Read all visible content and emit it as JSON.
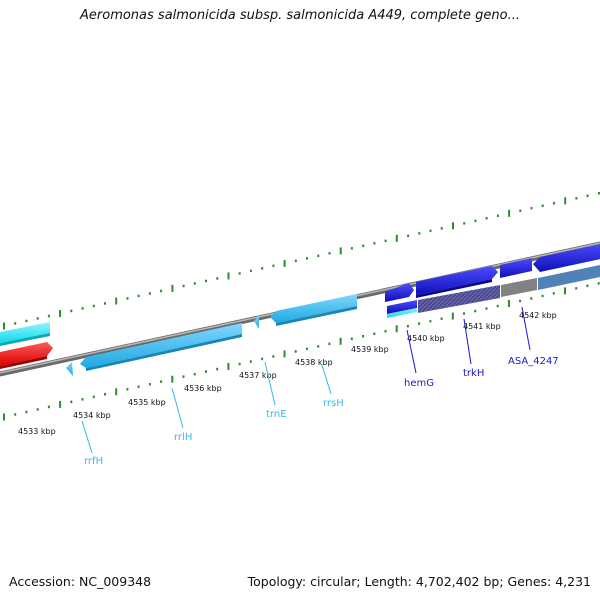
{
  "title": "Aeromonas salmonicida subsp. salmonicida A449, complete geno...",
  "footer": {
    "accession": "Accession: NC_009348",
    "summary": "Topology: circular; Length: 4,702,402 bp; Genes: 4,231"
  },
  "colors": {
    "background": "#ffffff",
    "backbone": "#8a8a8a",
    "tick": "#2e8b2e",
    "rna_gene": "#33bbee",
    "rna_label": "#33bbee",
    "coding_gene": "#1a1adf",
    "coding_label": "#1a1acc",
    "pseudo_or_other": "#ff1111",
    "highlight": "#22e6ee",
    "hatched_gene": "#4a4a9a",
    "gray_gene": "#808080",
    "steel_gene": "#4a7fb5"
  },
  "scale": {
    "unit": "kbp",
    "tick_labels": [
      "4533 kbp",
      "4534 kbp",
      "4535 kbp",
      "4536 kbp",
      "4537 kbp",
      "4538 kbp",
      "4539 kbp",
      "4540 kbp",
      "4541 kbp",
      "4542 kbp"
    ]
  },
  "gene_labels": [
    {
      "text": "rrfH",
      "kind": "rna"
    },
    {
      "text": "rrlH",
      "kind": "rna"
    },
    {
      "text": "trnE",
      "kind": "rna"
    },
    {
      "text": "rrsH",
      "kind": "rna"
    },
    {
      "text": "hemG",
      "kind": "coding"
    },
    {
      "text": "trkH",
      "kind": "coding"
    },
    {
      "text": "ASA_4247",
      "kind": "coding"
    }
  ]
}
